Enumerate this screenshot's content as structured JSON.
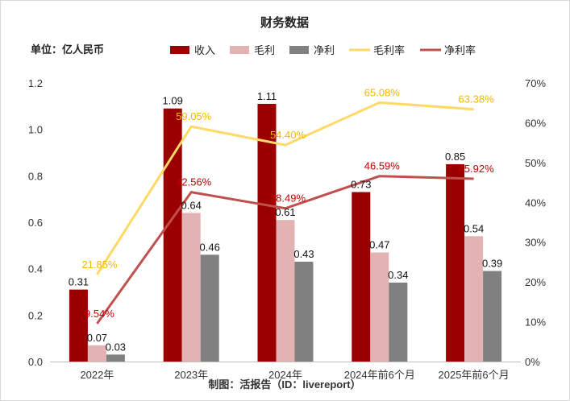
{
  "chart_data": {
    "type": "bar",
    "title": "财务数据",
    "unit_label": "单位：亿人民币",
    "credit": "制图：活报告（ID：livereport）",
    "categories": [
      "2022年",
      "2023年",
      "2024年",
      "2024年前6个月",
      "2025年前6个月"
    ],
    "series": [
      {
        "name": "收入",
        "kind": "bar",
        "axis": "left",
        "color": "#9b0000",
        "values": [
          0.31,
          1.09,
          1.11,
          0.73,
          0.85
        ],
        "labels": [
          "0.31",
          "1.09",
          "1.11",
          "0.73",
          "0.85"
        ]
      },
      {
        "name": "毛利",
        "kind": "bar",
        "axis": "left",
        "color": "#e3b3b3",
        "values": [
          0.07,
          0.64,
          0.61,
          0.47,
          0.54
        ],
        "labels": [
          "0.07",
          "0.64",
          "0.61",
          "0.47",
          "0.54"
        ]
      },
      {
        "name": "净利",
        "kind": "bar",
        "axis": "left",
        "color": "#808080",
        "values": [
          0.03,
          0.46,
          0.43,
          0.34,
          0.39
        ],
        "labels": [
          "0.03",
          "0.46",
          "0.43",
          "0.34",
          "0.39"
        ]
      },
      {
        "name": "毛利率",
        "kind": "line",
        "axis": "right",
        "color": "#ffd966",
        "label_color": "#f2b705",
        "values": [
          21.85,
          59.05,
          54.4,
          65.08,
          63.38
        ],
        "labels": [
          "21.85%",
          "59.05%",
          "54.40%",
          "65.08%",
          "63.38%"
        ]
      },
      {
        "name": "净利率",
        "kind": "line",
        "axis": "right",
        "color": "#c0504d",
        "label_color": "#c00000",
        "values": [
          9.54,
          42.56,
          38.49,
          46.59,
          45.92
        ],
        "labels": [
          "9.54%",
          "42.56%",
          "38.49%",
          "46.59%",
          "45.92%"
        ]
      }
    ],
    "y_left": {
      "min": 0,
      "max": 1.2,
      "ticks": [
        "0.0",
        "0.2",
        "0.4",
        "0.6",
        "0.8",
        "1.0",
        "1.2"
      ]
    },
    "y_right": {
      "min": 0,
      "max": 70,
      "ticks": [
        "0%",
        "10%",
        "20%",
        "30%",
        "40%",
        "50%",
        "60%",
        "70%"
      ]
    },
    "grid": false,
    "legend_position": "top"
  }
}
